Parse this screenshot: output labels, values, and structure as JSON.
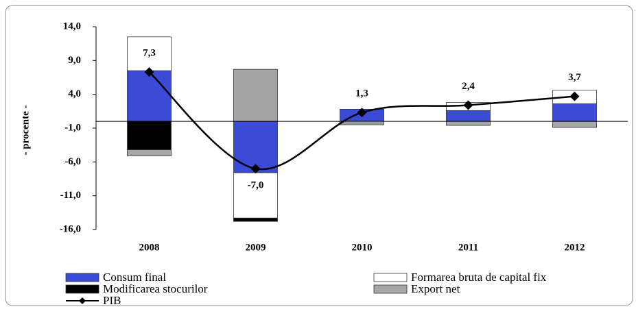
{
  "chart_data": {
    "type": "bar",
    "stacked": true,
    "y_label": "- procente -",
    "categories": [
      "2008",
      "2009",
      "2010",
      "2011",
      "2012"
    ],
    "ylim": [
      -16,
      14
    ],
    "yticks": [
      {
        "value": -16,
        "label": "-16,0"
      },
      {
        "value": -11,
        "label": "-11,0"
      },
      {
        "value": -6,
        "label": "-6,0"
      },
      {
        "value": -1,
        "label": "-1,0"
      },
      {
        "value": 4,
        "label": "4,0"
      },
      {
        "value": 9,
        "label": "9,0"
      },
      {
        "value": 14,
        "label": "14,0"
      }
    ],
    "series": [
      {
        "name": "Consum final",
        "color": "#3a4cd6",
        "values": [
          7.5,
          -7.6,
          1.8,
          1.6,
          2.6
        ]
      },
      {
        "name": "Formarea bruta de capital fix",
        "color": "#ffffff",
        "values": [
          5.0,
          -6.7,
          -0.2,
          1.2,
          2.0
        ]
      },
      {
        "name": "Modificarea stocurilor",
        "color": "#000000",
        "values": [
          -4.2,
          -0.5,
          0,
          0,
          0
        ]
      },
      {
        "name": "Export net",
        "color": "#a6a6a6",
        "values": [
          -0.9,
          7.7,
          -0.3,
          -0.6,
          -0.9
        ]
      },
      {
        "name": "PIB",
        "type": "line",
        "color": "#000000",
        "values": [
          7.3,
          -7.0,
          1.3,
          2.4,
          3.7
        ],
        "value_labels": [
          "7,3",
          "-7,0",
          "1,3",
          "2,4",
          "3,7"
        ]
      }
    ]
  }
}
